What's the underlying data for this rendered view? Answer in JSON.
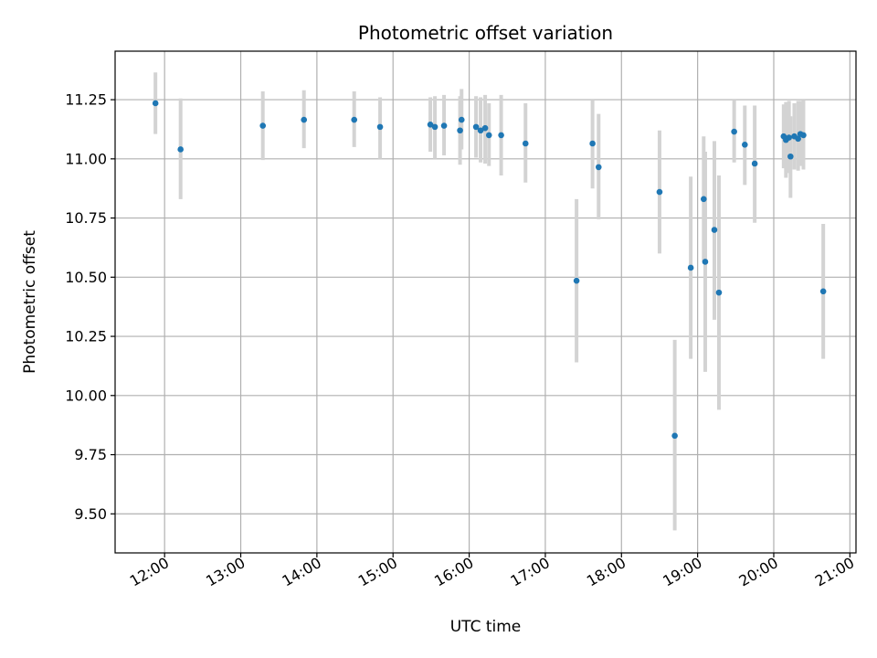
{
  "chart_data": {
    "type": "scatter",
    "title": "Photometric offset variation",
    "xlabel": "UTC time",
    "ylabel": "Photometric offset",
    "x_unit": "hour of day (UTC)",
    "xlim": [
      11.35,
      21.08
    ],
    "ylim": [
      9.335,
      11.455
    ],
    "x_ticks": [
      {
        "value": 12,
        "label": "12:00"
      },
      {
        "value": 13,
        "label": "13:00"
      },
      {
        "value": 14,
        "label": "14:00"
      },
      {
        "value": 15,
        "label": "15:00"
      },
      {
        "value": 16,
        "label": "16:00"
      },
      {
        "value": 17,
        "label": "17:00"
      },
      {
        "value": 18,
        "label": "18:00"
      },
      {
        "value": 19,
        "label": "19:00"
      },
      {
        "value": 20,
        "label": "20:00"
      },
      {
        "value": 21,
        "label": "21:00"
      }
    ],
    "y_ticks": [
      {
        "value": 9.5,
        "label": "9.50"
      },
      {
        "value": 9.75,
        "label": "9.75"
      },
      {
        "value": 10.0,
        "label": "10.00"
      },
      {
        "value": 10.25,
        "label": "10.25"
      },
      {
        "value": 10.5,
        "label": "10.50"
      },
      {
        "value": 10.75,
        "label": "10.75"
      },
      {
        "value": 11.0,
        "label": "11.00"
      },
      {
        "value": 11.25,
        "label": "11.25"
      }
    ],
    "grid": true,
    "point_color": "#1f77b4",
    "errorbar_color": "#d3d3d3",
    "points": [
      {
        "x": 11.88,
        "y": 11.235,
        "ylo": 11.105,
        "yhi": 11.365
      },
      {
        "x": 12.21,
        "y": 11.04,
        "ylo": 10.83,
        "yhi": 11.255
      },
      {
        "x": 13.29,
        "y": 11.14,
        "ylo": 10.995,
        "yhi": 11.285
      },
      {
        "x": 13.83,
        "y": 11.165,
        "ylo": 11.045,
        "yhi": 11.29
      },
      {
        "x": 14.49,
        "y": 11.165,
        "ylo": 11.05,
        "yhi": 11.285
      },
      {
        "x": 14.83,
        "y": 11.135,
        "ylo": 11.0,
        "yhi": 11.26
      },
      {
        "x": 15.49,
        "y": 11.145,
        "ylo": 11.03,
        "yhi": 11.26
      },
      {
        "x": 15.55,
        "y": 11.135,
        "ylo": 11.0,
        "yhi": 11.265
      },
      {
        "x": 15.67,
        "y": 11.14,
        "ylo": 11.015,
        "yhi": 11.27
      },
      {
        "x": 15.88,
        "y": 11.12,
        "ylo": 10.975,
        "yhi": 11.265
      },
      {
        "x": 15.9,
        "y": 11.165,
        "ylo": 11.04,
        "yhi": 11.295
      },
      {
        "x": 16.09,
        "y": 11.135,
        "ylo": 11.005,
        "yhi": 11.265
      },
      {
        "x": 16.15,
        "y": 11.12,
        "ylo": 10.985,
        "yhi": 11.26
      },
      {
        "x": 16.21,
        "y": 11.13,
        "ylo": 10.98,
        "yhi": 11.27
      },
      {
        "x": 16.26,
        "y": 11.1,
        "ylo": 10.97,
        "yhi": 11.235
      },
      {
        "x": 16.42,
        "y": 11.1,
        "ylo": 10.93,
        "yhi": 11.27
      },
      {
        "x": 16.74,
        "y": 11.065,
        "ylo": 10.9,
        "yhi": 11.235
      },
      {
        "x": 17.41,
        "y": 10.485,
        "ylo": 10.14,
        "yhi": 10.83
      },
      {
        "x": 17.62,
        "y": 11.065,
        "ylo": 10.875,
        "yhi": 11.25
      },
      {
        "x": 17.7,
        "y": 10.965,
        "ylo": 10.745,
        "yhi": 11.19
      },
      {
        "x": 18.5,
        "y": 10.86,
        "ylo": 10.6,
        "yhi": 11.12
      },
      {
        "x": 18.7,
        "y": 9.83,
        "ylo": 9.43,
        "yhi": 10.235
      },
      {
        "x": 18.91,
        "y": 10.54,
        "ylo": 10.155,
        "yhi": 10.925
      },
      {
        "x": 19.08,
        "y": 10.83,
        "ylo": 10.565,
        "yhi": 11.095
      },
      {
        "x": 19.1,
        "y": 10.565,
        "ylo": 10.1,
        "yhi": 11.03
      },
      {
        "x": 19.22,
        "y": 10.7,
        "ylo": 10.32,
        "yhi": 11.075
      },
      {
        "x": 19.28,
        "y": 10.435,
        "ylo": 9.94,
        "yhi": 10.93
      },
      {
        "x": 19.48,
        "y": 11.115,
        "ylo": 10.985,
        "yhi": 11.25
      },
      {
        "x": 19.62,
        "y": 11.06,
        "ylo": 10.89,
        "yhi": 11.225
      },
      {
        "x": 19.75,
        "y": 10.98,
        "ylo": 10.73,
        "yhi": 11.225
      },
      {
        "x": 20.13,
        "y": 11.095,
        "ylo": 10.96,
        "yhi": 11.23
      },
      {
        "x": 20.16,
        "y": 11.08,
        "ylo": 10.92,
        "yhi": 11.24
      },
      {
        "x": 20.2,
        "y": 11.09,
        "ylo": 10.94,
        "yhi": 11.245
      },
      {
        "x": 20.22,
        "y": 11.01,
        "ylo": 10.835,
        "yhi": 11.18
      },
      {
        "x": 20.27,
        "y": 11.095,
        "ylo": 10.955,
        "yhi": 11.235
      },
      {
        "x": 20.32,
        "y": 11.085,
        "ylo": 10.95,
        "yhi": 11.245
      },
      {
        "x": 20.35,
        "y": 11.105,
        "ylo": 10.97,
        "yhi": 11.245
      },
      {
        "x": 20.39,
        "y": 11.1,
        "ylo": 10.955,
        "yhi": 11.25
      },
      {
        "x": 20.65,
        "y": 10.44,
        "ylo": 10.155,
        "yhi": 10.725
      }
    ]
  }
}
